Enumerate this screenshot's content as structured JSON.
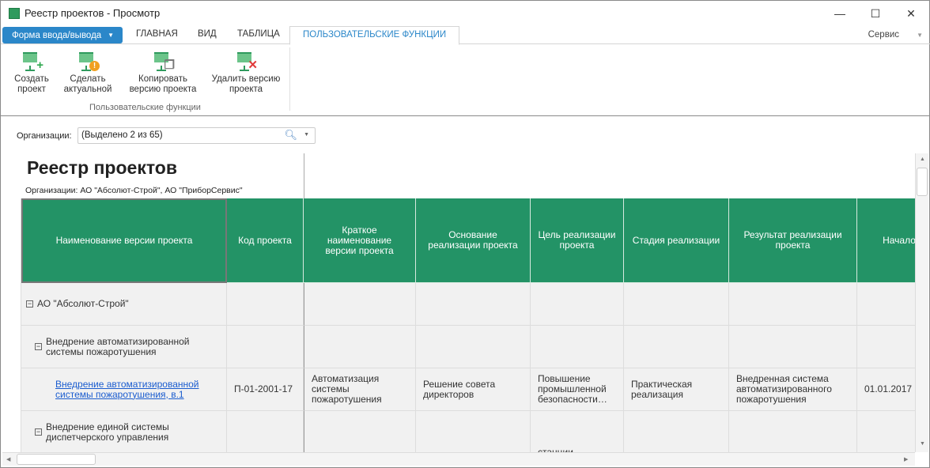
{
  "window": {
    "title": "Реестр проектов - Просмотр",
    "minimize": "—",
    "maximize": "☐",
    "close": "✕"
  },
  "ribbon": {
    "file_button": "Форма ввода/вывода",
    "tabs": [
      "ГЛАВНАЯ",
      "ВИД",
      "ТАБЛИЦА",
      "ПОЛЬЗОВАТЕЛЬСКИЕ ФУНКЦИИ"
    ],
    "active_tab": "ПОЛЬЗОВАТЕЛЬСКИЕ ФУНКЦИИ",
    "service": "Сервис",
    "buttons": [
      {
        "label1": "Создать",
        "label2": "проект",
        "icon": "create-project-icon",
        "badge": "+",
        "badge_color": "#2fa84f"
      },
      {
        "label1": "Сделать",
        "label2": "актуальной",
        "icon": "make-current-icon",
        "badge": "!",
        "badge_color": "#f0a020"
      },
      {
        "label1": "Копировать",
        "label2": "версию проекта",
        "icon": "copy-version-icon",
        "badge": "❐",
        "badge_color": "#777777"
      },
      {
        "label1": "Удалить версию",
        "label2": "проекта",
        "icon": "delete-version-icon",
        "badge": "✕",
        "badge_color": "#e03a3a"
      }
    ],
    "group_label": "Пользовательские функции"
  },
  "filter": {
    "label": "Организации:",
    "value": "(Выделено 2 из 65)"
  },
  "report": {
    "title": "Реестр проектов",
    "subtitle": "Организации: АО \"Абсолют-Строй\", АО \"ПриборСервис\"",
    "columns": [
      "Наименование версии проекта",
      "Код проекта",
      "Краткое наименование версии проекта",
      "Основание реализации проекта",
      "Цель реализации проекта",
      "Стадия реализации",
      "Результат реализации проекта",
      "Начало р"
    ],
    "rows": [
      {
        "level": 0,
        "name": "АО \"Абсолют-Строй\""
      },
      {
        "level": 1,
        "name": "Внедрение автоматизированной системы пожаротушения"
      },
      {
        "level": 2,
        "name": "Внедрение автоматизированной системы пожаротушения, в.1",
        "code": "П-01-2001-17",
        "short": "Автоматизация системы пожаротушения",
        "basis": "Решение совета директоров",
        "goal": "Повышение промышленной безопасности…",
        "stage": "Практическая реализация",
        "result": "Внедренная система автоматизированного пожаротушения",
        "start": "01.01.2017"
      },
      {
        "level": 1,
        "name": "Внедрение единой системы диспетчерского управления",
        "goal": "станции"
      }
    ]
  },
  "colors": {
    "header": "#239366",
    "accent": "#2b87c9",
    "link": "#1a5ccf"
  }
}
